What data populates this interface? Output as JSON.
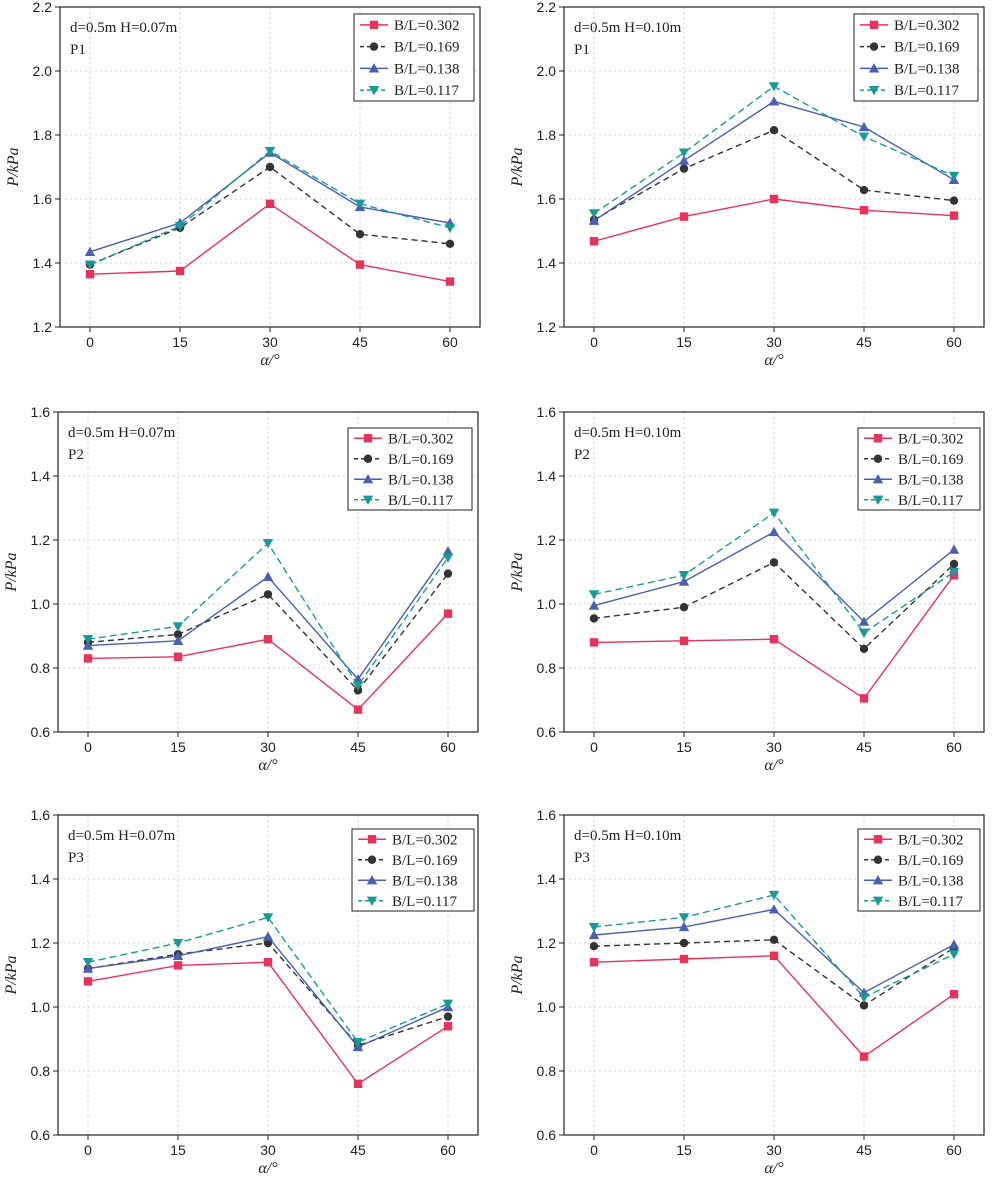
{
  "chart_data": [
    {
      "type": "line",
      "panel": "P1, H=0.07m",
      "annotation": {
        "line1": "d=0.5m H=0.07m",
        "line2": "P1"
      },
      "xlabel": "α/°",
      "ylabel": "P/kPa",
      "categories": [
        0,
        15,
        30,
        45,
        60
      ],
      "ylim": [
        1.2,
        2.2
      ],
      "yticks": [
        1.2,
        1.4,
        1.6,
        1.8,
        2.0,
        2.2
      ],
      "series": [
        {
          "name": "B/L=0.302",
          "values": [
            1.365,
            1.375,
            1.585,
            1.395,
            1.342
          ]
        },
        {
          "name": "B/L=0.169",
          "values": [
            1.395,
            1.51,
            1.7,
            1.49,
            1.46
          ]
        },
        {
          "name": "B/L=0.138",
          "values": [
            1.435,
            1.525,
            1.745,
            1.575,
            1.525
          ]
        },
        {
          "name": "B/L=0.117",
          "values": [
            1.395,
            1.515,
            1.75,
            1.585,
            1.51
          ]
        }
      ]
    },
    {
      "type": "line",
      "panel": "P1, H=0.10m",
      "annotation": {
        "line1": "d=0.5m H=0.10m",
        "line2": "P1"
      },
      "xlabel": "α/°",
      "ylabel": "P/kPa",
      "categories": [
        0,
        15,
        30,
        45,
        60
      ],
      "ylim": [
        1.2,
        2.2
      ],
      "yticks": [
        1.2,
        1.4,
        1.6,
        1.8,
        2.0,
        2.2
      ],
      "series": [
        {
          "name": "B/L=0.302",
          "values": [
            1.468,
            1.545,
            1.6,
            1.565,
            1.548
          ]
        },
        {
          "name": "B/L=0.169",
          "values": [
            1.535,
            1.695,
            1.815,
            1.628,
            1.595
          ]
        },
        {
          "name": "B/L=0.138",
          "values": [
            1.532,
            1.72,
            1.905,
            1.825,
            1.66
          ]
        },
        {
          "name": "B/L=0.117",
          "values": [
            1.555,
            1.745,
            1.952,
            1.795,
            1.672
          ]
        }
      ]
    },
    {
      "type": "line",
      "panel": "P2, H=0.07m",
      "annotation": {
        "line1": "d=0.5m H=0.07m",
        "line2": "P2"
      },
      "xlabel": "α/°",
      "ylabel": "P/kPa",
      "categories": [
        0,
        15,
        30,
        45,
        60
      ],
      "ylim": [
        0.6,
        1.6
      ],
      "yticks": [
        0.6,
        0.8,
        1.0,
        1.2,
        1.4,
        1.6
      ],
      "series": [
        {
          "name": "B/L=0.302",
          "values": [
            0.83,
            0.835,
            0.89,
            0.67,
            0.97
          ]
        },
        {
          "name": "B/L=0.169",
          "values": [
            0.88,
            0.905,
            1.03,
            0.73,
            1.095
          ]
        },
        {
          "name": "B/L=0.138",
          "values": [
            0.87,
            0.885,
            1.085,
            0.765,
            1.165
          ]
        },
        {
          "name": "B/L=0.117",
          "values": [
            0.89,
            0.93,
            1.19,
            0.745,
            1.145
          ]
        }
      ]
    },
    {
      "type": "line",
      "panel": "P2, H=0.10m",
      "annotation": {
        "line1": "d=0.5m H=0.10m",
        "line2": "P2"
      },
      "xlabel": "α/°",
      "ylabel": "P/kPa",
      "categories": [
        0,
        15,
        30,
        45,
        60
      ],
      "ylim": [
        0.6,
        1.6
      ],
      "yticks": [
        0.6,
        0.8,
        1.0,
        1.2,
        1.4,
        1.6
      ],
      "series": [
        {
          "name": "B/L=0.302",
          "values": [
            0.88,
            0.885,
            0.89,
            0.705,
            1.09
          ]
        },
        {
          "name": "B/L=0.169",
          "values": [
            0.955,
            0.99,
            1.13,
            0.86,
            1.125
          ]
        },
        {
          "name": "B/L=0.138",
          "values": [
            0.995,
            1.07,
            1.225,
            0.945,
            1.17
          ]
        },
        {
          "name": "B/L=0.117",
          "values": [
            1.03,
            1.09,
            1.285,
            0.91,
            1.1
          ]
        }
      ]
    },
    {
      "type": "line",
      "panel": "P3, H=0.07m",
      "annotation": {
        "line1": "d=0.5m H=0.07m",
        "line2": "P3"
      },
      "xlabel": "α/°",
      "ylabel": "P/kPa",
      "categories": [
        0,
        15,
        30,
        45,
        60
      ],
      "ylim": [
        0.6,
        1.6
      ],
      "yticks": [
        0.6,
        0.8,
        1.0,
        1.2,
        1.4,
        1.6
      ],
      "series": [
        {
          "name": "B/L=0.302",
          "values": [
            1.08,
            1.13,
            1.14,
            0.76,
            0.94
          ]
        },
        {
          "name": "B/L=0.169",
          "values": [
            1.12,
            1.165,
            1.2,
            0.88,
            0.97
          ]
        },
        {
          "name": "B/L=0.138",
          "values": [
            1.12,
            1.16,
            1.22,
            0.875,
            1.0
          ]
        },
        {
          "name": "B/L=0.117",
          "values": [
            1.14,
            1.2,
            1.28,
            0.89,
            1.01
          ]
        }
      ]
    },
    {
      "type": "line",
      "panel": "P3, H=0.10m",
      "annotation": {
        "line1": "d=0.5m H=0.10m",
        "line2": "P3"
      },
      "xlabel": "α/°",
      "ylabel": "P/kPa",
      "categories": [
        0,
        15,
        30,
        45,
        60
      ],
      "ylim": [
        0.6,
        1.6
      ],
      "yticks": [
        0.6,
        0.8,
        1.0,
        1.2,
        1.4,
        1.6
      ],
      "series": [
        {
          "name": "B/L=0.302",
          "values": [
            1.14,
            1.15,
            1.16,
            0.845,
            1.04
          ]
        },
        {
          "name": "B/L=0.169",
          "values": [
            1.19,
            1.2,
            1.21,
            1.005,
            1.185
          ]
        },
        {
          "name": "B/L=0.138",
          "values": [
            1.225,
            1.25,
            1.305,
            1.045,
            1.195
          ]
        },
        {
          "name": "B/L=0.117",
          "values": [
            1.25,
            1.28,
            1.35,
            1.03,
            1.165
          ]
        }
      ]
    }
  ],
  "series_styles": [
    {
      "color": "#e8325a",
      "dash": "",
      "marker": "square"
    },
    {
      "color": "#333333",
      "dash": "6 4",
      "marker": "circle"
    },
    {
      "color": "#4a5fb0",
      "dash": "",
      "marker": "triangle-up"
    },
    {
      "color": "#1a9a96",
      "dash": "7 4",
      "marker": "triangle-down"
    }
  ]
}
